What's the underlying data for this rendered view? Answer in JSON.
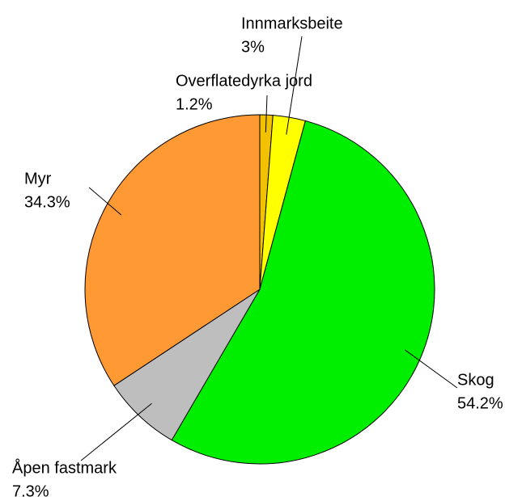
{
  "chart_data": {
    "type": "pie",
    "categories": [
      "Overflatedyrka jord",
      "Innmarksbeite",
      "Skog",
      "Åpen fastmark",
      "Myr"
    ],
    "values": [
      1.2,
      3,
      54.2,
      7.3,
      34.3
    ],
    "value_labels": [
      "1.2%",
      "3%",
      "54.2%",
      "7.3%",
      "34.3%"
    ],
    "colors": [
      "#f2c200",
      "#ffff00",
      "#00ee00",
      "#bebebe",
      "#ff9933"
    ]
  }
}
